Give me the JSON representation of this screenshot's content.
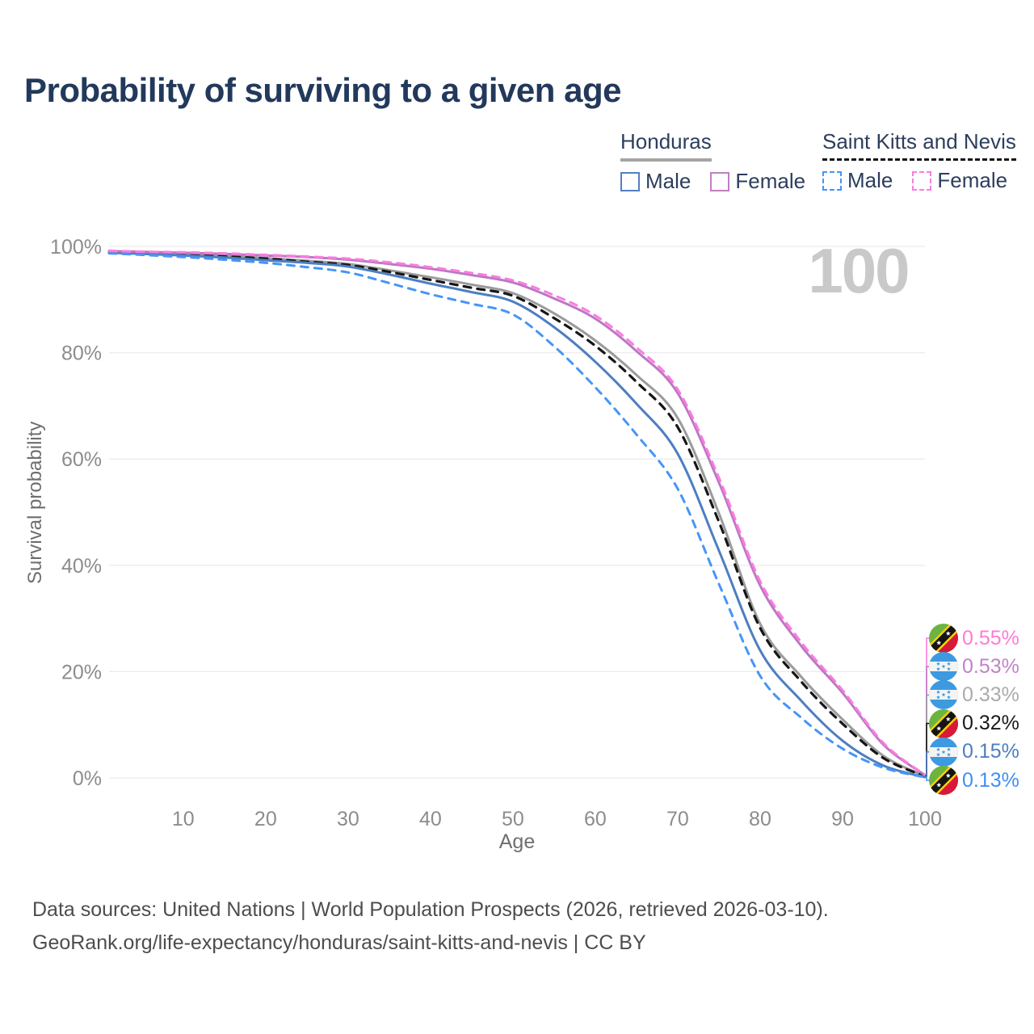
{
  "title": "Probability of surviving to a given age",
  "age_indicator": "100",
  "legend": {
    "groups": [
      {
        "id": "honduras",
        "title": "Honduras",
        "line_style": "solid",
        "line_color": "#a4a4a4",
        "items": [
          {
            "label": "Male",
            "color": "#5380c0",
            "style": "solid"
          },
          {
            "label": "Female",
            "color": "#bf7fbf",
            "style": "solid"
          }
        ]
      },
      {
        "id": "saint-kitts-and-nevis",
        "title": "Saint Kitts and Nevis",
        "line_style": "dashed",
        "line_color": "#141414",
        "items": [
          {
            "label": "Male",
            "color": "#4695f7",
            "style": "dashed"
          },
          {
            "label": "Female",
            "color": "#fb7ce0",
            "style": "dashed"
          }
        ]
      }
    ]
  },
  "end_labels": [
    {
      "series": "skn-female",
      "flag": "saint-kitts-and-nevis",
      "value": "0.55%",
      "color": "#ff7ad8"
    },
    {
      "series": "hn-female",
      "flag": "honduras",
      "value": "0.53%",
      "color": "#c183c9"
    },
    {
      "series": "hn-total",
      "flag": "honduras",
      "value": "0.33%",
      "color": "#ababab"
    },
    {
      "series": "skn-total",
      "flag": "saint-kitts-and-nevis",
      "value": "0.32%",
      "color": "#1a1a1a"
    },
    {
      "series": "hn-male",
      "flag": "honduras",
      "value": "0.15%",
      "color": "#4d7ec2"
    },
    {
      "series": "skn-male",
      "flag": "saint-kitts-and-nevis",
      "value": "0.13%",
      "color": "#4090f5"
    }
  ],
  "footer": {
    "line1": "Data sources: United Nations | World Population Prospects (2026, retrieved 2026-03-10).",
    "line2": "GeoRank.org/life-expectancy/honduras/saint-kitts-and-nevis | CC BY"
  },
  "chart_data": {
    "type": "line",
    "title": "Probability of surviving to a given age",
    "xlabel": "Age",
    "ylabel": "Survival probability",
    "xlim": [
      1,
      100
    ],
    "ylim": [
      0,
      100
    ],
    "grid": "horizontal",
    "x_ticks": [
      10,
      20,
      30,
      40,
      50,
      60,
      70,
      80,
      90,
      100
    ],
    "y_ticks": [
      {
        "label": "0%",
        "value": 0
      },
      {
        "label": "20%",
        "value": 20
      },
      {
        "label": "40%",
        "value": 40
      },
      {
        "label": "60%",
        "value": 60
      },
      {
        "label": "80%",
        "value": 80
      },
      {
        "label": "100%",
        "value": 100
      }
    ],
    "ages": [
      1,
      5,
      10,
      15,
      20,
      25,
      30,
      35,
      40,
      45,
      50,
      55,
      60,
      65,
      70,
      75,
      80,
      85,
      90,
      95,
      100
    ],
    "series": [
      {
        "id": "skn-female",
        "name": "Saint Kitts and Nevis — Female",
        "color": "#fb7ce0",
        "dash": "dashed",
        "values": [
          99.2,
          99.0,
          98.9,
          98.7,
          98.4,
          98.1,
          97.7,
          97.0,
          96.1,
          95.0,
          93.6,
          90.8,
          87.0,
          81.0,
          73.1,
          56.5,
          37.0,
          25.5,
          16.5,
          6.5,
          0.55
        ]
      },
      {
        "id": "hn-female",
        "name": "Honduras — Female",
        "color": "#bd77c3",
        "dash": "solid",
        "values": [
          99.1,
          99.0,
          98.8,
          98.6,
          98.3,
          98.0,
          97.5,
          96.7,
          95.8,
          94.6,
          93.2,
          90.2,
          86.4,
          80.3,
          72.4,
          55.6,
          36.2,
          24.8,
          16.0,
          6.2,
          0.53
        ]
      },
      {
        "id": "hn-total",
        "name": "Honduras — Both sexes",
        "color": "#9b9b9b",
        "dash": "solid",
        "values": [
          98.9,
          98.8,
          98.5,
          98.2,
          97.8,
          97.3,
          96.7,
          95.5,
          94.2,
          92.8,
          91.2,
          87.4,
          82.3,
          75.8,
          67.7,
          49.8,
          29.0,
          19.0,
          11.0,
          4.1,
          0.33
        ]
      },
      {
        "id": "skn-total",
        "name": "Saint Kitts and Nevis — Both sexes",
        "color": "#161616",
        "dash": "dashed",
        "values": [
          98.9,
          98.7,
          98.4,
          98.1,
          97.7,
          97.1,
          96.5,
          95.2,
          93.7,
          92.2,
          90.7,
          86.5,
          81.3,
          74.5,
          66.0,
          48.2,
          28.2,
          18.1,
          10.2,
          3.7,
          0.32
        ]
      },
      {
        "id": "hn-male",
        "name": "Honduras — Male",
        "color": "#4d7ec2",
        "dash": "solid",
        "values": [
          98.8,
          98.6,
          98.3,
          97.9,
          97.4,
          96.9,
          96.2,
          94.7,
          93.0,
          91.4,
          89.6,
          84.8,
          78.3,
          70.4,
          61.0,
          42.8,
          24.0,
          14.5,
          7.0,
          2.3,
          0.15
        ]
      },
      {
        "id": "skn-male",
        "name": "Saint Kitts and Nevis — Male",
        "color": "#4695f7",
        "dash": "dashed",
        "values": [
          98.7,
          98.4,
          98.0,
          97.5,
          96.9,
          96.1,
          95.1,
          93.1,
          91.0,
          89.2,
          87.2,
          81.2,
          73.5,
          64.6,
          54.4,
          36.5,
          19.2,
          11.3,
          5.5,
          1.9,
          0.13
        ]
      }
    ]
  }
}
